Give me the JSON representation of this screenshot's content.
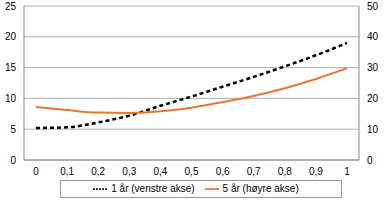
{
  "chart_data": {
    "type": "line",
    "x": [
      0,
      0.1,
      0.2,
      0.3,
      0.4,
      0.5,
      0.6,
      0.7,
      0.8,
      0.9,
      1
    ],
    "xlim": [
      0,
      1
    ],
    "xticks": [
      0,
      {
        "value": 0.1,
        "label": "0,1"
      },
      {
        "value": 0.2,
        "label": "0,2"
      },
      {
        "value": 0.3,
        "label": "0,3"
      },
      {
        "value": 0.4,
        "label": "0,4"
      },
      {
        "value": 0.5,
        "label": "0,5"
      },
      {
        "value": 0.6,
        "label": "0,6"
      },
      {
        "value": 0.7,
        "label": "0,7"
      },
      {
        "value": 0.8,
        "label": "0,8"
      },
      {
        "value": 0.9,
        "label": "0,9"
      },
      1
    ],
    "ylim": [
      0,
      25
    ],
    "yticks": [
      0,
      5,
      10,
      15,
      20,
      25
    ],
    "y2lim": [
      0,
      50
    ],
    "y2ticks": [
      0,
      10,
      20,
      30,
      40,
      50
    ],
    "grid": true,
    "legend": "bottom",
    "series": [
      {
        "name": "1 år (venstre akse)",
        "color": "#000000",
        "line_style": "dashed",
        "marker": "none",
        "values": [
          5.2,
          5.3,
          6.1,
          7.2,
          8.8,
          10.3,
          11.9,
          13.5,
          15.2,
          17.0,
          19.0
        ]
      },
      {
        "name": "5 år (høyre akse)",
        "color": "#e8772e",
        "line_style": "solid",
        "marker": "none",
        "axis": "y2",
        "values": [
          17.2,
          16.2,
          15.4,
          15.3,
          15.8,
          17.0,
          18.8,
          20.8,
          23.3,
          26.3,
          29.8
        ]
      }
    ]
  }
}
